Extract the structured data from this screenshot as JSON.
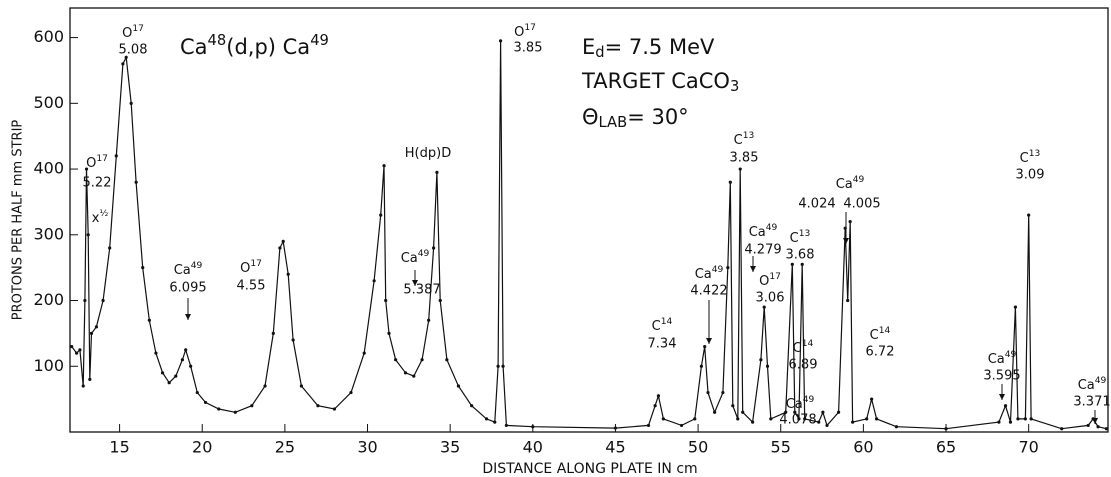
{
  "chart_data": {
    "type": "line",
    "title_parts": [
      {
        "text": "Ca"
      },
      {
        "sup": "48"
      },
      {
        "text": "(d,p) Ca"
      },
      {
        "sup": "49"
      }
    ],
    "info": [
      [
        {
          "text": "E"
        },
        {
          "sub": "d"
        },
        {
          "text": "= 7.5  MeV"
        }
      ],
      [
        {
          "text": "TARGET  CaCO"
        },
        {
          "sub": "3"
        }
      ],
      [
        {
          "text": "Θ"
        },
        {
          "sub": "LAB"
        },
        {
          "text": "= 30°"
        }
      ]
    ],
    "xlabel": "DISTANCE ALONG PLATE IN cm",
    "ylabel": "PROTONS PER HALF mm STRIP",
    "xlim": [
      12,
      74.8
    ],
    "ylim": [
      0,
      645
    ],
    "xticks": [
      15,
      20,
      25,
      30,
      35,
      40,
      45,
      50,
      55,
      60,
      65,
      70
    ],
    "yticks": [
      100,
      200,
      300,
      400,
      500,
      600
    ],
    "color": "#111111",
    "x": [
      12.1,
      12.4,
      12.6,
      12.8,
      12.9,
      13.0,
      13.1,
      13.2,
      13.3,
      13.6,
      14.0,
      14.4,
      14.8,
      15.2,
      15.4,
      15.7,
      16.0,
      16.4,
      16.8,
      17.2,
      17.6,
      18.0,
      18.4,
      18.8,
      19.0,
      19.3,
      19.7,
      20.2,
      21,
      22,
      23,
      23.8,
      24.3,
      24.7,
      24.9,
      25.2,
      25.5,
      26,
      27,
      28,
      29,
      29.8,
      30.4,
      30.8,
      31.0,
      31.1,
      31.3,
      31.7,
      32.3,
      32.8,
      33.3,
      33.7,
      34.0,
      34.2,
      34.4,
      34.8,
      35.5,
      36.3,
      37.2,
      37.7,
      37.9,
      38.05,
      38.2,
      38.4,
      40,
      45,
      47,
      47.4,
      47.6,
      47.9,
      49,
      49.8,
      50.2,
      50.4,
      50.6,
      51,
      51.5,
      51.8,
      51.95,
      52.1,
      52.4,
      52.55,
      52.7,
      53.3,
      53.8,
      54.0,
      54.2,
      54.4,
      55.3,
      55.7,
      55.85,
      56.1,
      56.3,
      56.45,
      57.3,
      57.55,
      57.8,
      58.5,
      58.9,
      59.05,
      59.2,
      59.35,
      60.2,
      60.5,
      60.8,
      62,
      65,
      68.2,
      68.6,
      68.9,
      69.2,
      69.35,
      69.8,
      70.0,
      70.15,
      72,
      73.6,
      73.9,
      74.2,
      74.7
    ],
    "values": [
      130,
      120,
      125,
      70,
      200,
      400,
      300,
      80,
      150,
      160,
      200,
      280,
      420,
      560,
      570,
      500,
      380,
      250,
      170,
      120,
      90,
      75,
      85,
      110,
      125,
      100,
      60,
      45,
      35,
      30,
      40,
      70,
      150,
      280,
      290,
      240,
      140,
      70,
      40,
      35,
      60,
      120,
      230,
      330,
      405,
      200,
      150,
      110,
      90,
      85,
      110,
      170,
      280,
      395,
      200,
      110,
      70,
      40,
      20,
      15,
      100,
      595,
      100,
      10,
      8,
      6,
      10,
      40,
      55,
      20,
      10,
      20,
      100,
      130,
      60,
      30,
      60,
      250,
      380,
      40,
      20,
      400,
      30,
      15,
      110,
      190,
      100,
      20,
      30,
      255,
      30,
      20,
      255,
      20,
      15,
      30,
      10,
      30,
      310,
      200,
      320,
      15,
      20,
      50,
      20,
      8,
      5,
      15,
      40,
      15,
      190,
      20,
      20,
      330,
      20,
      5,
      10,
      20,
      8,
      5
    ],
    "annotations": [
      {
        "parts": [
          {
            "text": "O"
          },
          {
            "sup": "17"
          }
        ],
        "lines": [
          "5.22"
        ]
      },
      {
        "parts": [
          {
            "text": "x"
          },
          {
            "sup": "½"
          }
        ]
      },
      {
        "parts": [
          {
            "text": "O"
          },
          {
            "sup": "17"
          }
        ],
        "lines": [
          "5.08"
        ]
      },
      {
        "parts": [
          {
            "text": "Ca"
          },
          {
            "sup": "49"
          }
        ],
        "lines": [
          "6.095"
        ]
      },
      {
        "parts": [
          {
            "text": "O"
          },
          {
            "sup": "17"
          }
        ],
        "lines": [
          "4.55"
        ]
      },
      {
        "parts": [
          {
            "text": "H(dp)D"
          }
        ]
      },
      {
        "parts": [
          {
            "text": "Ca"
          },
          {
            "sup": "49"
          }
        ],
        "lines": [
          "5.387"
        ]
      },
      {
        "parts": [
          {
            "text": "O"
          },
          {
            "sup": "17"
          }
        ],
        "lines": [
          "3.85"
        ]
      },
      {
        "parts": [
          {
            "text": "C"
          },
          {
            "sup": "14"
          }
        ],
        "lines": [
          "7.34"
        ]
      },
      {
        "parts": [
          {
            "text": "Ca"
          },
          {
            "sup": "49"
          }
        ],
        "lines": [
          "4.422"
        ]
      },
      {
        "parts": [
          {
            "text": "C"
          },
          {
            "sup": "13"
          }
        ],
        "lines": [
          "3.85"
        ]
      },
      {
        "parts": [
          {
            "text": "Ca"
          },
          {
            "sup": "49"
          }
        ],
        "lines": [
          "4.279"
        ]
      },
      {
        "parts": [
          {
            "text": "O"
          },
          {
            "sup": "17"
          }
        ],
        "lines": [
          "3.06"
        ]
      },
      {
        "parts": [
          {
            "text": "C"
          },
          {
            "sup": "13"
          }
        ],
        "lines": [
          "3.68"
        ]
      },
      {
        "parts": [
          {
            "text": "C"
          },
          {
            "sup": "14"
          }
        ],
        "lines": [
          "6.89"
        ]
      },
      {
        "parts": [
          {
            "text": "Ca"
          },
          {
            "sup": "49"
          }
        ],
        "lines": [
          "4.078"
        ]
      },
      {
        "parts": [
          {
            "text": "Ca"
          },
          {
            "sup": "49"
          }
        ],
        "lines": [
          "4.024",
          "4.005"
        ]
      },
      {
        "parts": [
          {
            "text": "C"
          },
          {
            "sup": "14"
          }
        ],
        "lines": [
          "6.72"
        ]
      },
      {
        "parts": [
          {
            "text": "C"
          },
          {
            "sup": "13"
          }
        ],
        "lines": [
          "3.09"
        ]
      },
      {
        "parts": [
          {
            "text": "Ca"
          },
          {
            "sup": "49"
          }
        ],
        "lines": [
          "3.595"
        ]
      },
      {
        "parts": [
          {
            "text": "Ca"
          },
          {
            "sup": "49"
          }
        ],
        "lines": [
          "3.371"
        ]
      }
    ]
  }
}
